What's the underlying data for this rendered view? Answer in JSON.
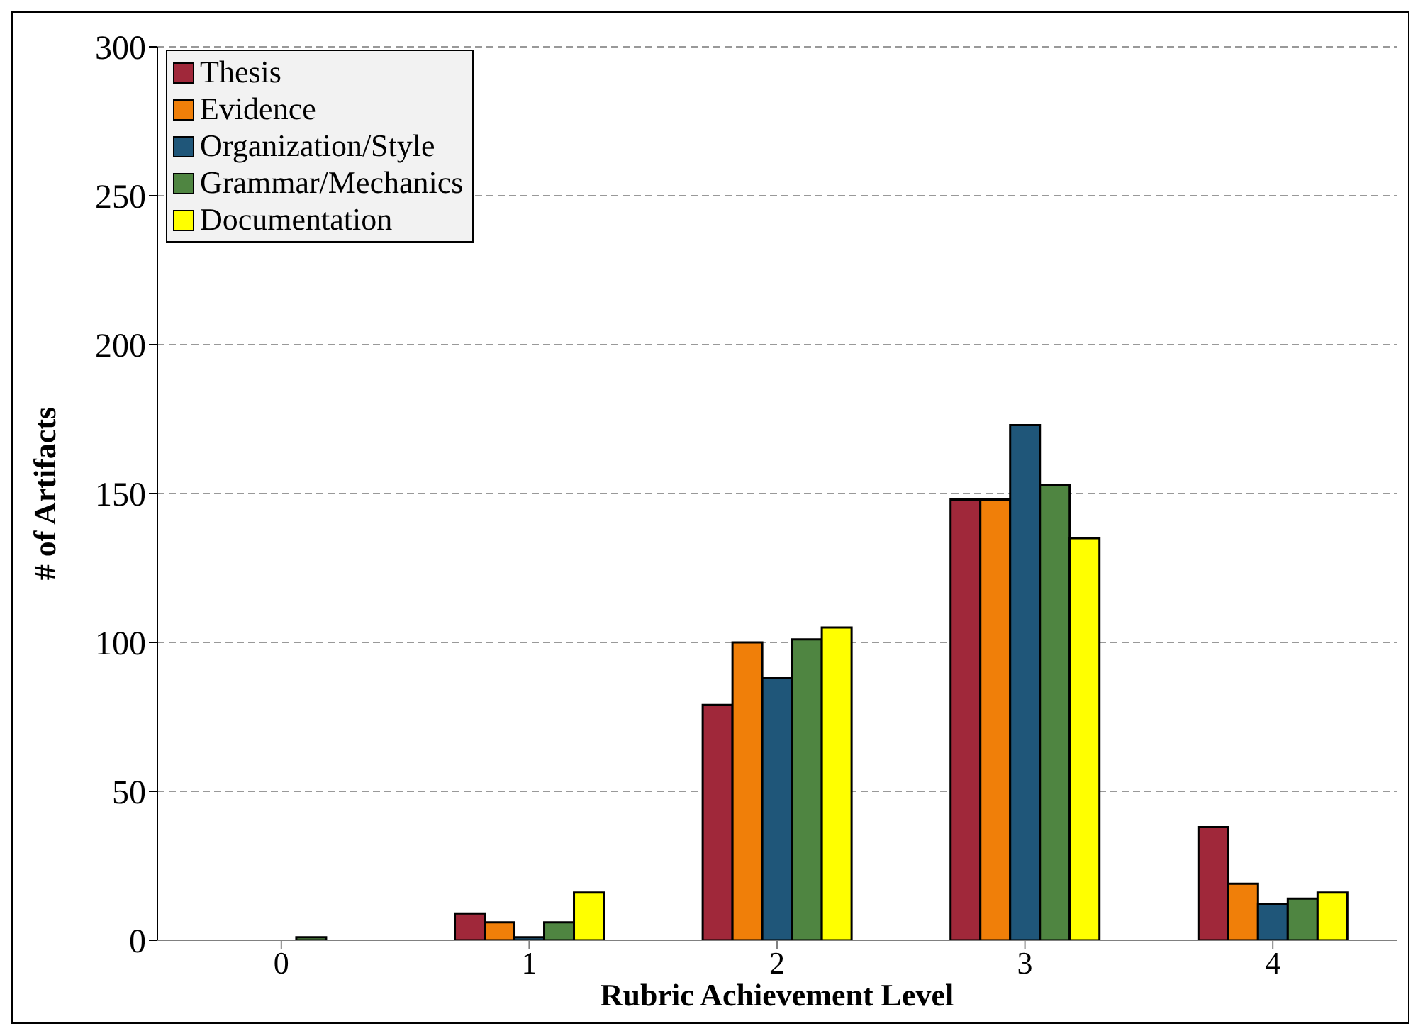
{
  "chart_data": {
    "type": "bar",
    "xlabel": "Rubric Achievement Level",
    "ylabel": "# of Artifacts",
    "categories": [
      "0",
      "1",
      "2",
      "3",
      "4"
    ],
    "series": [
      {
        "name": "Thesis",
        "color": "#a0283a",
        "values": [
          0,
          9,
          79,
          148,
          38
        ]
      },
      {
        "name": "Evidence",
        "color": "#f07f09",
        "values": [
          0,
          6,
          100,
          148,
          19
        ]
      },
      {
        "name": "Organization/Style",
        "color": "#1f5679",
        "values": [
          0,
          1,
          88,
          173,
          12
        ]
      },
      {
        "name": "Grammar/Mechanics",
        "color": "#4f8541",
        "values": [
          1,
          6,
          101,
          153,
          14
        ]
      },
      {
        "name": "Documentation",
        "color": "#ffff00",
        "values": [
          0,
          16,
          105,
          135,
          16
        ]
      }
    ],
    "ylim": [
      0,
      300
    ],
    "yticks": [
      0,
      50,
      100,
      150,
      200,
      250,
      300
    ],
    "grid": "y",
    "legend": "top left"
  }
}
